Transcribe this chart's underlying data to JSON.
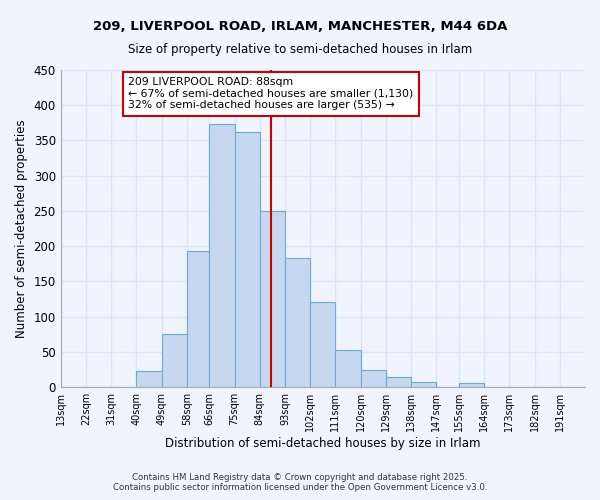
{
  "title": "209, LIVERPOOL ROAD, IRLAM, MANCHESTER, M44 6DA",
  "subtitle": "Size of property relative to semi-detached houses in Irlam",
  "xlabel": "Distribution of semi-detached houses by size in Irlam",
  "ylabel": "Number of semi-detached properties",
  "bin_labels": [
    "13sqm",
    "22sqm",
    "31sqm",
    "40sqm",
    "49sqm",
    "58sqm",
    "66sqm",
    "75sqm",
    "84sqm",
    "93sqm",
    "102sqm",
    "111sqm",
    "120sqm",
    "129sqm",
    "138sqm",
    "147sqm",
    "155sqm",
    "164sqm",
    "173sqm",
    "182sqm",
    "191sqm"
  ],
  "bin_edges": [
    13,
    22,
    31,
    40,
    49,
    58,
    66,
    75,
    84,
    93,
    102,
    111,
    120,
    129,
    138,
    147,
    155,
    164,
    173,
    182,
    191,
    200
  ],
  "bar_heights": [
    0,
    0,
    0,
    23,
    75,
    193,
    373,
    362,
    250,
    183,
    121,
    53,
    25,
    14,
    8,
    0,
    6,
    0,
    0,
    0,
    0
  ],
  "bar_color": "#c5d8f0",
  "bar_edgecolor": "#6aaad4",
  "property_value": 88,
  "vline_color": "#cc0000",
  "annotation_line1": "209 LIVERPOOL ROAD: 88sqm",
  "annotation_line2": "← 67% of semi-detached houses are smaller (1,130)",
  "annotation_line3": "32% of semi-detached houses are larger (535) →",
  "annotation_box_edgecolor": "#cc0000",
  "ylim": [
    0,
    450
  ],
  "yticks": [
    0,
    50,
    100,
    150,
    200,
    250,
    300,
    350,
    400,
    450
  ],
  "footer_line1": "Contains HM Land Registry data © Crown copyright and database right 2025.",
  "footer_line2": "Contains public sector information licensed under the Open Government Licence v3.0.",
  "bg_color": "#f0f4ff",
  "grid_color": "#d8e4f8"
}
